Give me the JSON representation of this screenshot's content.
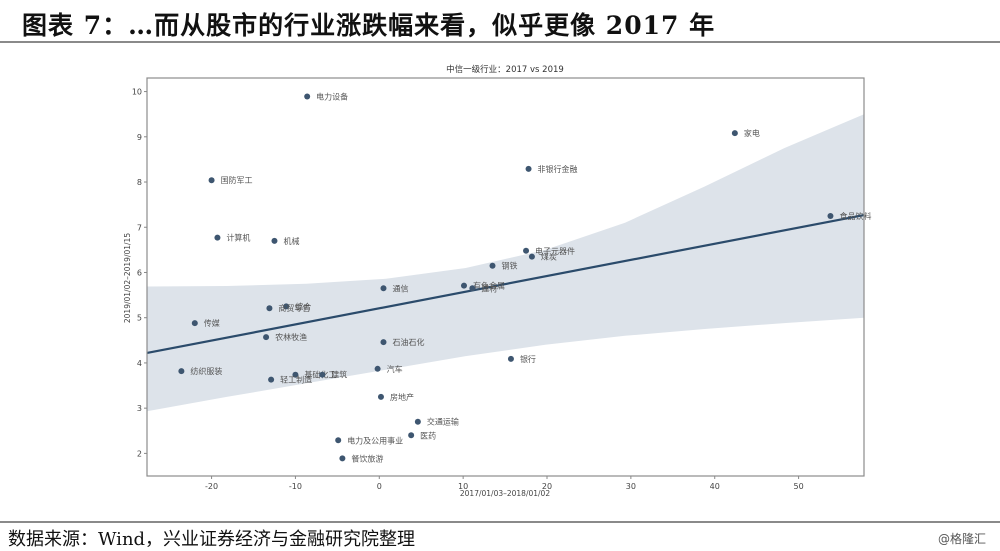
{
  "figure": {
    "title": "图表 7：…而从股市的行业涨跌幅来看，似乎更像 2017 年",
    "source": "数据来源：Wind，兴业证券经济与金融研究院整理",
    "watermark": "@格隆汇"
  },
  "colors": {
    "point": "#3e5670",
    "line": "#2b4b6b",
    "band": "#dde3ea",
    "axis": "#888888"
  },
  "chart_data": {
    "type": "scatter",
    "title": "中信一级行业：2017 vs 2019",
    "xlabel": "2017/01/03–2018/01/02",
    "ylabel": "2019/01/02–2019/01/15",
    "xlim": [
      -27.7,
      57.8
    ],
    "ylim": [
      1.5,
      10.3
    ],
    "xticks": [
      -20,
      -10,
      0,
      10,
      20,
      30,
      40,
      50
    ],
    "yticks": [
      2,
      3,
      4,
      5,
      6,
      7,
      8,
      9,
      10
    ],
    "grid": false,
    "legend": null,
    "points": [
      {
        "label": "电力设备",
        "x": -8.6,
        "y": 9.89
      },
      {
        "label": "家电",
        "x": 42.4,
        "y": 9.08
      },
      {
        "label": "非银行金融",
        "x": 17.8,
        "y": 8.29
      },
      {
        "label": "国防军工",
        "x": -20.0,
        "y": 8.04
      },
      {
        "label": "食品饮料",
        "x": 53.8,
        "y": 7.25
      },
      {
        "label": "计算机",
        "x": -19.3,
        "y": 6.77
      },
      {
        "label": "机械",
        "x": -12.5,
        "y": 6.7
      },
      {
        "label": "电子元器件",
        "x": 17.5,
        "y": 6.48
      },
      {
        "label": "煤炭",
        "x": 18.2,
        "y": 6.35
      },
      {
        "label": "钢铁",
        "x": 13.5,
        "y": 6.15
      },
      {
        "label": "有色金属",
        "x": 10.1,
        "y": 5.71
      },
      {
        "label": "建材",
        "x": 11.1,
        "y": 5.65
      },
      {
        "label": "通信",
        "x": 0.5,
        "y": 5.65
      },
      {
        "label": "综合",
        "x": -11.1,
        "y": 5.25
      },
      {
        "label": "商贸零售",
        "x": -13.1,
        "y": 5.21
      },
      {
        "label": "传媒",
        "x": -22.0,
        "y": 4.88
      },
      {
        "label": "农林牧渔",
        "x": -13.5,
        "y": 4.57
      },
      {
        "label": "石油石化",
        "x": 0.5,
        "y": 4.46
      },
      {
        "label": "银行",
        "x": 15.7,
        "y": 4.09
      },
      {
        "label": "汽车",
        "x": -0.2,
        "y": 3.87
      },
      {
        "label": "纺织服装",
        "x": -23.6,
        "y": 3.82
      },
      {
        "label": "基础化工",
        "x": -10.0,
        "y": 3.74
      },
      {
        "label": "建筑",
        "x": -6.8,
        "y": 3.74
      },
      {
        "label": "轻工制造",
        "x": -12.9,
        "y": 3.63
      },
      {
        "label": "房地产",
        "x": 0.2,
        "y": 3.25
      },
      {
        "label": "交通运输",
        "x": 4.6,
        "y": 2.7
      },
      {
        "label": "医药",
        "x": 3.8,
        "y": 2.4
      },
      {
        "label": "电力及公用事业",
        "x": -4.9,
        "y": 2.29
      },
      {
        "label": "餐饮旅游",
        "x": -4.4,
        "y": 1.89
      }
    ],
    "regression": {
      "x": [
        -27.7,
        57.8
      ],
      "y": [
        4.22,
        7.27
      ],
      "ci_upper": [
        5.69,
        5.7,
        5.75,
        5.86,
        6.1,
        6.5,
        7.1,
        7.9,
        8.75,
        9.5
      ],
      "ci_lower": [
        2.93,
        3.25,
        3.55,
        3.85,
        4.15,
        4.4,
        4.6,
        4.75,
        4.88,
        5.0
      ],
      "ci_x": [
        -27.7,
        -18.2,
        -8.7,
        0.8,
        10.3,
        19.8,
        29.3,
        38.8,
        48.3,
        57.8
      ]
    }
  }
}
